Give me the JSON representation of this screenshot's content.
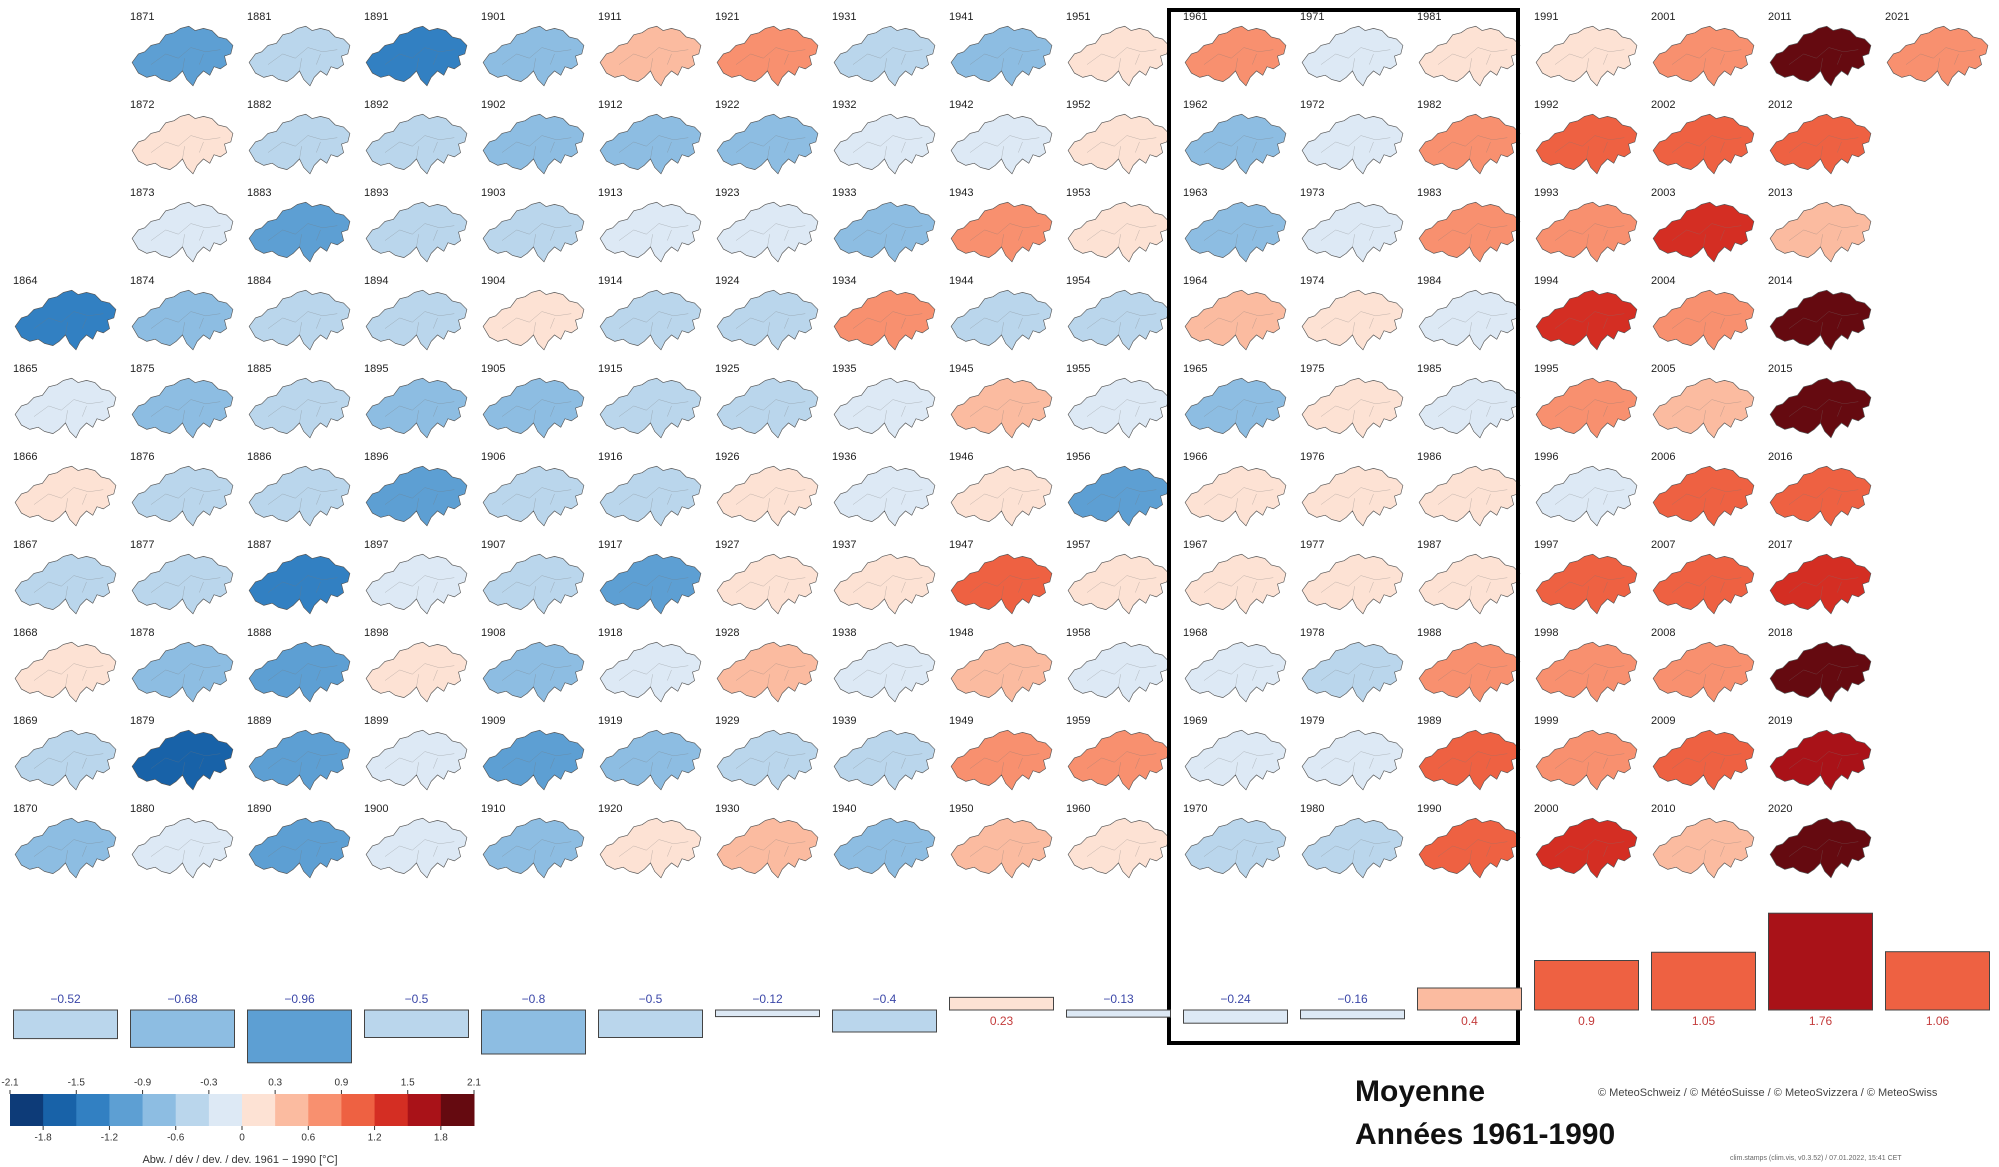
{
  "chart_data": [
    {
      "type": "map-grid",
      "years": [
        1864,
        1865,
        1866,
        1867,
        1868,
        1869,
        1870,
        1871,
        1872,
        1873,
        1874,
        1875,
        1876,
        1877,
        1878,
        1879,
        1880,
        1881,
        1882,
        1883,
        1884,
        1885,
        1886,
        1887,
        1888,
        1889,
        1890,
        1891,
        1892,
        1893,
        1894,
        1895,
        1896,
        1897,
        1898,
        1899,
        1900,
        1901,
        1902,
        1903,
        1904,
        1905,
        1906,
        1907,
        1908,
        1909,
        1910,
        1911,
        1912,
        1913,
        1914,
        1915,
        1916,
        1917,
        1918,
        1919,
        1920,
        1921,
        1922,
        1923,
        1924,
        1925,
        1926,
        1927,
        1928,
        1929,
        1930,
        1931,
        1932,
        1933,
        1934,
        1935,
        1936,
        1937,
        1938,
        1939,
        1940,
        1941,
        1942,
        1943,
        1944,
        1945,
        1946,
        1947,
        1948,
        1949,
        1950,
        1951,
        1952,
        1953,
        1954,
        1955,
        1956,
        1957,
        1958,
        1959,
        1960,
        1961,
        1962,
        1963,
        1964,
        1965,
        1966,
        1967,
        1968,
        1969,
        1970,
        1971,
        1972,
        1973,
        1974,
        1975,
        1976,
        1977,
        1978,
        1979,
        1980,
        1981,
        1982,
        1983,
        1984,
        1985,
        1986,
        1987,
        1988,
        1989,
        1990,
        1991,
        1992,
        1993,
        1994,
        1995,
        1996,
        1997,
        1998,
        1999,
        2000,
        2001,
        2002,
        2003,
        2004,
        2005,
        2006,
        2007,
        2008,
        2009,
        2010,
        2011,
        2012,
        2013,
        2014,
        2015,
        2016,
        2017,
        2018,
        2019,
        2020,
        2021
      ],
      "values": [
        -1.5,
        -0.3,
        0.1,
        -0.4,
        0.2,
        -0.4,
        -0.9,
        -1.2,
        0.1,
        -0.3,
        -0.7,
        -0.7,
        -0.6,
        -0.4,
        -0.8,
        -1.6,
        -0.3,
        -0.4,
        -0.5,
        -1.0,
        -0.4,
        -0.5,
        -0.5,
        -1.4,
        -1.0,
        -1.1,
        -1.0,
        -1.3,
        -0.6,
        -0.4,
        -0.5,
        -0.8,
        -1.0,
        -0.2,
        0.1,
        -0.3,
        -0.1,
        -0.8,
        -0.7,
        -0.5,
        0.0,
        -0.8,
        -0.5,
        -0.6,
        -0.8,
        -1.0,
        -0.8,
        0.3,
        -0.7,
        -0.3,
        -0.6,
        -0.6,
        -0.4,
        -1.1,
        -0.3,
        -0.9,
        0.2,
        0.6,
        -0.9,
        -0.2,
        -0.6,
        -0.4,
        0.1,
        0.1,
        0.3,
        -0.4,
        0.3,
        -0.6,
        -0.3,
        -0.7,
        0.6,
        -0.3,
        -0.3,
        0.1,
        -0.2,
        -0.4,
        -0.9,
        -0.8,
        -0.2,
        0.7,
        -0.5,
        0.4,
        0.1,
        1.0,
        0.4,
        0.8,
        0.5,
        0.1,
        0.0,
        0.2,
        -0.4,
        -0.2,
        -1.1,
        0.1,
        -0.1,
        0.7,
        0.0,
        0.7,
        -0.7,
        -0.9,
        0.3,
        -0.7,
        0.2,
        0.1,
        -0.3,
        -0.3,
        -0.4,
        -0.1,
        -0.3,
        -0.3,
        0.1,
        0.1,
        0.1,
        0.2,
        -0.5,
        -0.3,
        -0.6,
        0.0,
        0.6,
        0.6,
        -0.3,
        -0.2,
        0.0,
        0.1,
        0.6,
        0.9,
        0.9,
        0.2,
        0.9,
        0.6,
        1.4,
        0.6,
        -0.3,
        1.0,
        0.8,
        0.7,
        1.3,
        0.8,
        1.2,
        1.4,
        0.6,
        0.4,
        1.1,
        1.2,
        0.8,
        1.1,
        0.3,
        1.9,
        1.0,
        0.5,
        1.9,
        2.1,
        1.2,
        1.3,
        2.1,
        1.6,
        2.1,
        0.8
      ],
      "colorbar": {
        "lim": [
          -2.1,
          2.1
        ],
        "colors": [
          "#0d3b78",
          "#1862a8",
          "#3280c2",
          "#5d9fd3",
          "#8dbde2",
          "#bad6ec",
          "#dde9f5",
          "#fde2d4",
          "#fbbba0",
          "#f8906f",
          "#ee6142",
          "#d42e23",
          "#a91218",
          "#650a10"
        ],
        "ticks_top": [
          -2.1,
          -1.5,
          -0.9,
          -0.3,
          0.3,
          0.9,
          1.5,
          2.1
        ],
        "ticks_bottom": [
          -1.8,
          -1.2,
          -0.6,
          0,
          0.6,
          1.2,
          1.8
        ],
        "label": "Abw. / dév / dev. / dev. 1961 − 1990 [°C]"
      },
      "annotation": [
        "Moyenne",
        "Années 1961-1990"
      ],
      "copyright": "© MeteoSchweiz / © MétéoSuisse / © MeteoSvizzera / © MeteoSwiss",
      "stamp": "clim.stamps (clim.vis, v0.3.52) / 07.01.2022, 15:41 CET"
    },
    {
      "type": "bar",
      "values": [
        -0.52,
        -0.68,
        -0.96,
        -0.5,
        -0.8,
        -0.5,
        -0.12,
        -0.4,
        0.23,
        -0.13,
        -0.24,
        -0.16,
        0.4,
        0.9,
        1.05,
        1.76,
        1.06
      ],
      "value_labels": [
        "−0.52",
        "−0.68",
        "−0.96",
        "−0.5",
        "−0.8",
        "−0.5",
        "−0.12",
        "−0.4",
        "0.23",
        "−0.13",
        "−0.24",
        "−0.16",
        "0.4",
        "0.9",
        "1.05",
        "1.76",
        "1.06"
      ]
    }
  ]
}
